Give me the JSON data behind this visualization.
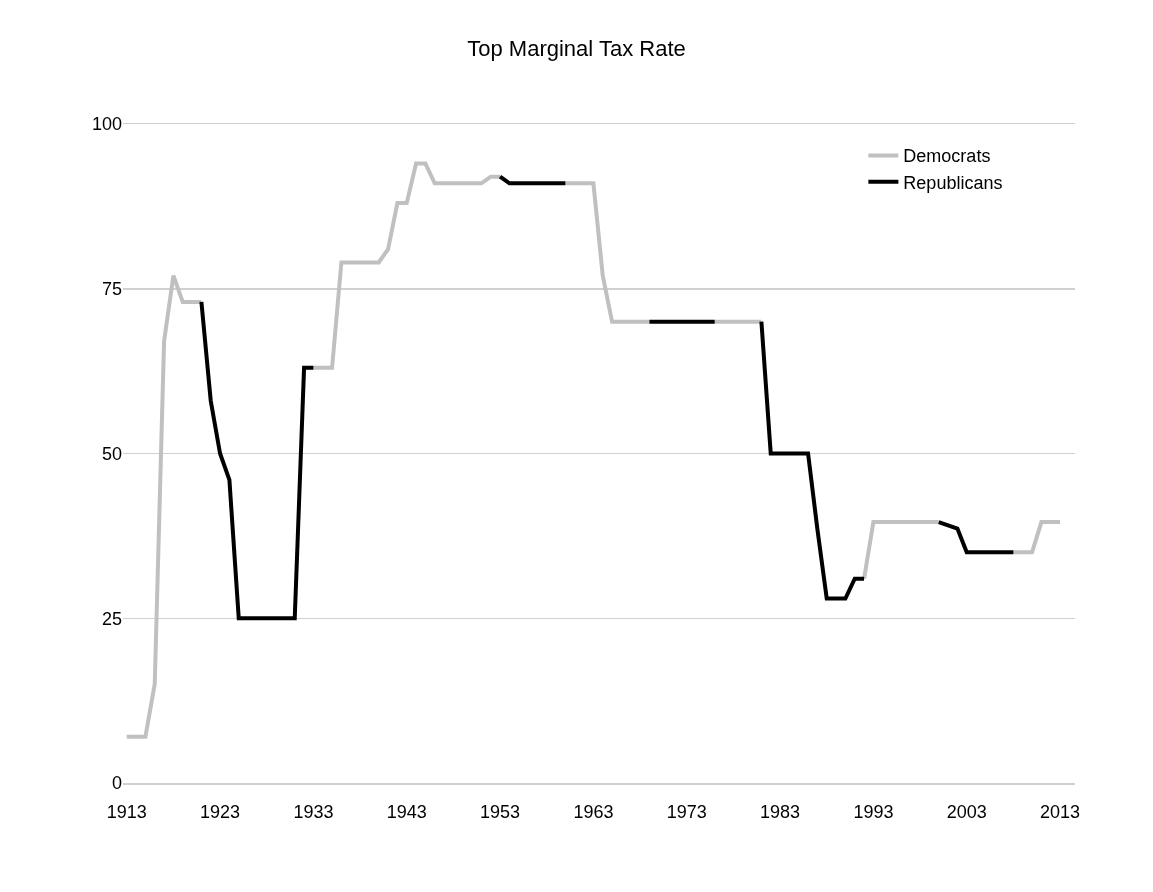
{
  "chart_data": {
    "type": "line",
    "title": "Top Marginal Tax Rate",
    "x": [
      1913,
      1914,
      1915,
      1916,
      1917,
      1918,
      1919,
      1920,
      1921,
      1922,
      1923,
      1924,
      1925,
      1926,
      1927,
      1928,
      1929,
      1930,
      1931,
      1932,
      1933,
      1934,
      1935,
      1936,
      1937,
      1938,
      1939,
      1940,
      1941,
      1942,
      1943,
      1944,
      1945,
      1946,
      1947,
      1948,
      1949,
      1950,
      1951,
      1952,
      1953,
      1954,
      1955,
      1956,
      1957,
      1958,
      1959,
      1960,
      1961,
      1962,
      1963,
      1964,
      1965,
      1966,
      1967,
      1968,
      1969,
      1970,
      1971,
      1972,
      1973,
      1974,
      1975,
      1976,
      1977,
      1978,
      1979,
      1980,
      1981,
      1982,
      1983,
      1984,
      1985,
      1986,
      1987,
      1988,
      1989,
      1990,
      1991,
      1992,
      1993,
      1994,
      1995,
      1996,
      1997,
      1998,
      1999,
      2000,
      2001,
      2002,
      2003,
      2004,
      2005,
      2006,
      2007,
      2008,
      2009,
      2010,
      2011,
      2012,
      2013
    ],
    "series": [
      {
        "name": "Democrats",
        "color": "#c0c0c0",
        "values": [
          7,
          7,
          7,
          15,
          67,
          77,
          73,
          73,
          73,
          null,
          null,
          null,
          null,
          null,
          null,
          null,
          null,
          null,
          null,
          null,
          63,
          63,
          63,
          79,
          79,
          79,
          79,
          79,
          81,
          88,
          88,
          94,
          94,
          91,
          91,
          91,
          91,
          91,
          91,
          92,
          92,
          null,
          null,
          null,
          null,
          null,
          null,
          91,
          91,
          91,
          91,
          77,
          70,
          70,
          70,
          70,
          70,
          null,
          null,
          null,
          null,
          null,
          null,
          70,
          70,
          70,
          70,
          70,
          70,
          null,
          null,
          null,
          null,
          null,
          null,
          null,
          null,
          null,
          null,
          31,
          39.6,
          39.6,
          39.6,
          39.6,
          39.6,
          39.6,
          39.6,
          39.6,
          null,
          null,
          null,
          null,
          null,
          null,
          null,
          35,
          35,
          35,
          39.6,
          39.6,
          39.6
        ]
      },
      {
        "name": "Republicans",
        "color": "#000000",
        "values": [
          null,
          null,
          null,
          null,
          null,
          null,
          null,
          null,
          73,
          58,
          50,
          46,
          25,
          25,
          25,
          25,
          25,
          25,
          25,
          63,
          63,
          null,
          null,
          null,
          null,
          null,
          null,
          null,
          null,
          null,
          null,
          null,
          null,
          null,
          null,
          null,
          null,
          null,
          null,
          null,
          92,
          91,
          91,
          91,
          91,
          91,
          91,
          91,
          null,
          null,
          null,
          null,
          null,
          null,
          null,
          null,
          70,
          70,
          70,
          70,
          70,
          70,
          70,
          70,
          null,
          null,
          null,
          null,
          70,
          50,
          50,
          50,
          50,
          50,
          38.5,
          28,
          28,
          28,
          31,
          31,
          null,
          null,
          null,
          null,
          null,
          null,
          null,
          39.6,
          39.1,
          38.6,
          35,
          35,
          35,
          35,
          35,
          35,
          null,
          null,
          null,
          null,
          null
        ]
      }
    ],
    "xlim": [
      1912.6,
      2014.6
    ],
    "xticks": [
      1913,
      1923,
      1933,
      1943,
      1953,
      1963,
      1973,
      1983,
      1993,
      2003,
      2013
    ],
    "ylim": [
      0,
      100
    ],
    "yticks": [
      0,
      25,
      50,
      75,
      100
    ],
    "grid": "y",
    "legend": "top right",
    "marker": "none",
    "line_style": "solid"
  }
}
